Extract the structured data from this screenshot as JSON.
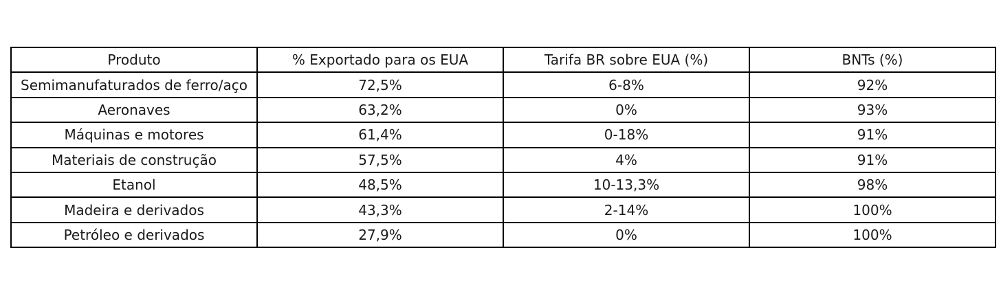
{
  "table": {
    "header": [
      "Produto",
      "% Exportado para os EUA",
      "Tarifa BR sobre EUA (%)",
      "BNTs (%)"
    ],
    "rows": [
      [
        "Semimanufaturados de ferro/aço",
        "72,5%",
        "6-8%",
        "92%"
      ],
      [
        "Aeronaves",
        "63,2%",
        "0%",
        "93%"
      ],
      [
        "Máquinas e motores",
        "61,4%",
        "0-18%",
        "91%"
      ],
      [
        "Materiais de construção",
        "57,5%",
        "4%",
        "91%"
      ],
      [
        "Etanol",
        "48,5%",
        "10-13,3%",
        "98%"
      ],
      [
        "Madeira e derivados",
        "43,3%",
        "2-14%",
        "100%"
      ],
      [
        "Petróleo e derivados",
        "27,9%",
        "0%",
        "100%"
      ]
    ]
  }
}
